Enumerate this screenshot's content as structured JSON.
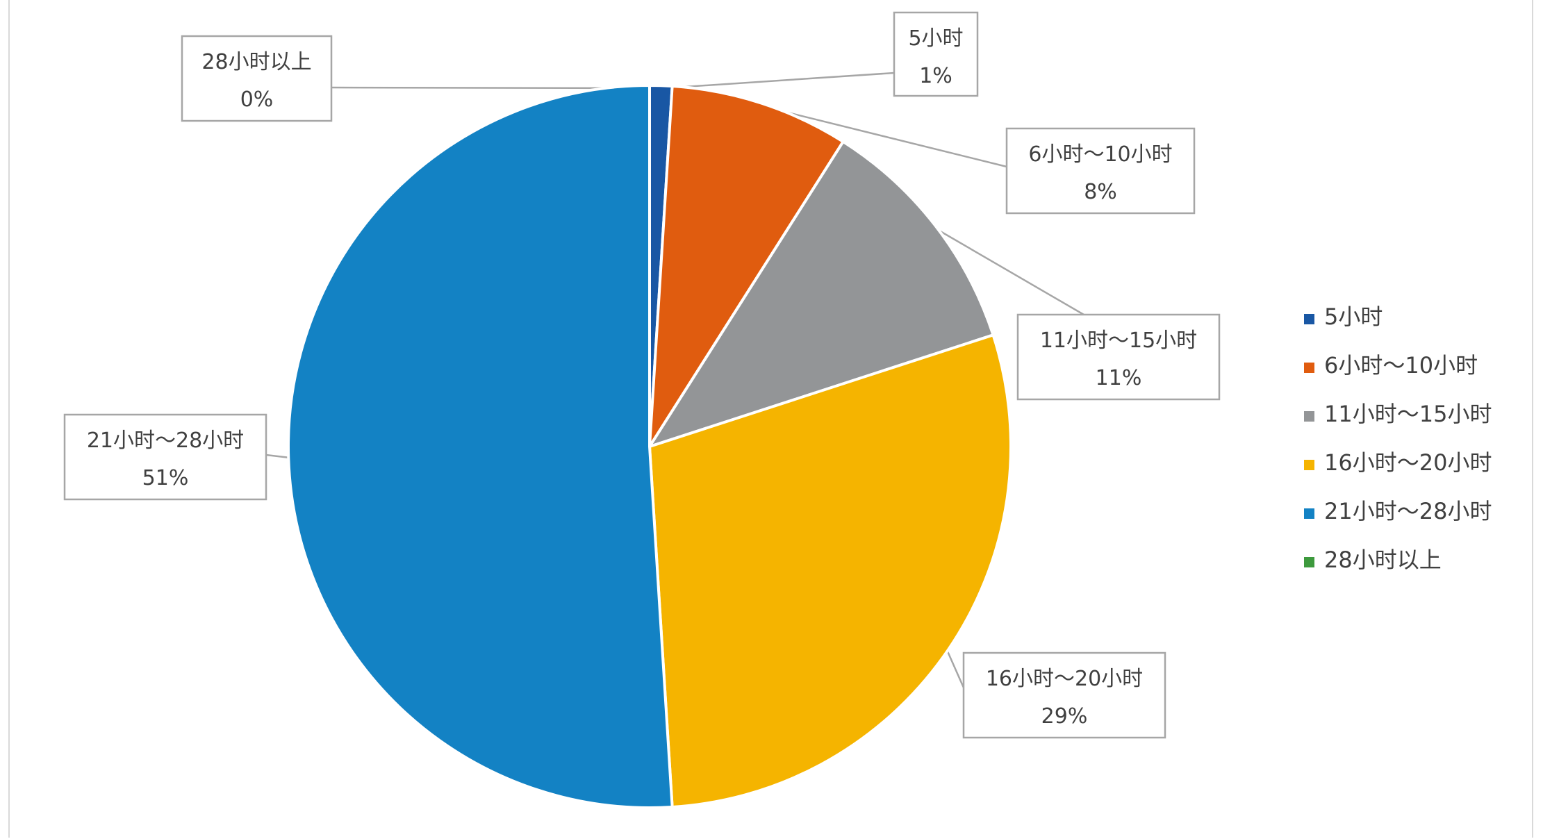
{
  "chart_data": {
    "type": "pie",
    "title": "",
    "legend_position": "right",
    "slices": [
      {
        "label": "5小时",
        "value": 1,
        "value_label": "1%",
        "color": "#1957a4"
      },
      {
        "label": "6小时～10小时",
        "value": 8,
        "value_label": "8%",
        "color": "#e05c0f"
      },
      {
        "label": "11小时～15小时",
        "value": 11,
        "value_label": "11%",
        "color": "#939597"
      },
      {
        "label": "16小时～20小时",
        "value": 29,
        "value_label": "29%",
        "color": "#f5b400"
      },
      {
        "label": "21小时～28小时",
        "value": 51,
        "value_label": "51%",
        "color": "#1382c4"
      },
      {
        "label": "28小时以上",
        "value": 0,
        "value_label": "0%",
        "color": "#3d9a3d"
      }
    ]
  }
}
